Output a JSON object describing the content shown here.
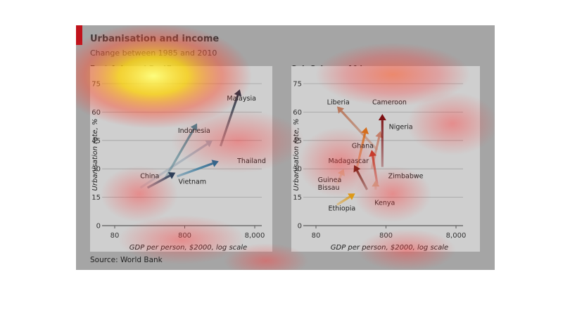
{
  "figure": {
    "title": "Urbanisation and income",
    "subtitle": "Change between 1985 and 2010",
    "source": "Source: World Bank"
  },
  "chart_data": [
    {
      "type": "scatter",
      "title": "East Asia and Pacific",
      "xlabel": "GDP per person, $2000, log scale",
      "ylabel": "Urbanisation rate, %",
      "xscale": "log",
      "xlim": [
        50,
        8000
      ],
      "ylim": [
        0,
        78
      ],
      "xticks": [
        80,
        800,
        8000
      ],
      "xtick_labels": [
        "80",
        "800",
        "8,000"
      ],
      "yticks": [
        0,
        15,
        30,
        45,
        60,
        75
      ],
      "grid": true,
      "series": [
        {
          "name": "China",
          "color": "#9ea9b5",
          "x_start": 186,
          "y_start": 20,
          "x_end": 2000,
          "y_end": 45,
          "label": {
            "x": 185,
            "y": 25
          }
        },
        {
          "name": "Indonesia",
          "color": "#4d7d8b",
          "x_start": 420,
          "y_start": 25,
          "x_end": 1200,
          "y_end": 54,
          "label": {
            "x": 640,
            "y": 49
          }
        },
        {
          "name": "Malaysia",
          "color": "#2c3444",
          "x_start": 2600,
          "y_start": 42,
          "x_end": 4900,
          "y_end": 72,
          "label": {
            "x": 3200,
            "y": 66
          }
        },
        {
          "name": "Thailand",
          "color": "#1e6a94",
          "x_start": 620,
          "y_start": 26,
          "x_end": 2450,
          "y_end": 34,
          "label": {
            "x": 4500,
            "y": 33
          }
        },
        {
          "name": "Vietnam",
          "color": "#2d3e58",
          "x_start": 235,
          "y_start": 20,
          "x_end": 590,
          "y_end": 28,
          "label": {
            "x": 650,
            "y": 22
          }
        }
      ]
    },
    {
      "type": "scatter",
      "title": "Sub-Saharan Africa",
      "xlabel": "GDP per person, $2000, log scale",
      "ylabel": "Urbanisation rate, %",
      "xscale": "log",
      "xlim": [
        50,
        8000
      ],
      "ylim": [
        0,
        78
      ],
      "xticks": [
        80,
        800,
        8000
      ],
      "xtick_labels": [
        "80",
        "800",
        "8,000"
      ],
      "yticks": [
        0,
        15,
        30,
        45,
        60,
        75
      ],
      "grid": true,
      "series": [
        {
          "name": "Liberia",
          "color": "#b9785c",
          "x_start": 600,
          "y_start": 40,
          "x_end": 160,
          "y_end": 63,
          "label": {
            "x": 115,
            "y": 64
          }
        },
        {
          "name": "Cameroon",
          "color": "#c57f6a",
          "x_start": 500,
          "y_start": 30,
          "x_end": 670,
          "y_end": 50,
          "label": {
            "x": 510,
            "y": 64
          }
        },
        {
          "name": "Nigeria",
          "color": "#7d0f12",
          "x_start": 710,
          "y_start": 31,
          "x_end": 710,
          "y_end": 59,
          "label": {
            "x": 880,
            "y": 51
          }
        },
        {
          "name": "Ghana",
          "color": "#d46d1c",
          "x_start": 310,
          "y_start": 31,
          "x_end": 420,
          "y_end": 52,
          "label": {
            "x": 260,
            "y": 41
          }
        },
        {
          "name": "Madagascar",
          "color": "#5e1b10",
          "x_start": 430,
          "y_start": 19,
          "x_end": 280,
          "y_end": 32,
          "label": {
            "x": 120,
            "y": 33
          }
        },
        {
          "name": "Guinea Bissau",
          "color": "#cfb79c",
          "x_start": 160,
          "y_start": 22,
          "x_end": 200,
          "y_end": 30,
          "label": {
            "x": 85,
            "y": 23
          }
        },
        {
          "name": "Zimbabwe",
          "color": "#c23b2a",
          "x_start": 600,
          "y_start": 22,
          "x_end": 500,
          "y_end": 40,
          "label": {
            "x": 860,
            "y": 25
          }
        },
        {
          "name": "Kenya",
          "color": "#caa58f",
          "x_start": 570,
          "y_start": 19,
          "x_end": 570,
          "y_end": 24,
          "label": {
            "x": 550,
            "y": 11
          }
        },
        {
          "name": "Ethiopia",
          "color": "#dd9a18",
          "x_start": 160,
          "y_start": 11,
          "x_end": 290,
          "y_end": 17,
          "label": {
            "x": 120,
            "y": 8
          }
        }
      ]
    }
  ]
}
